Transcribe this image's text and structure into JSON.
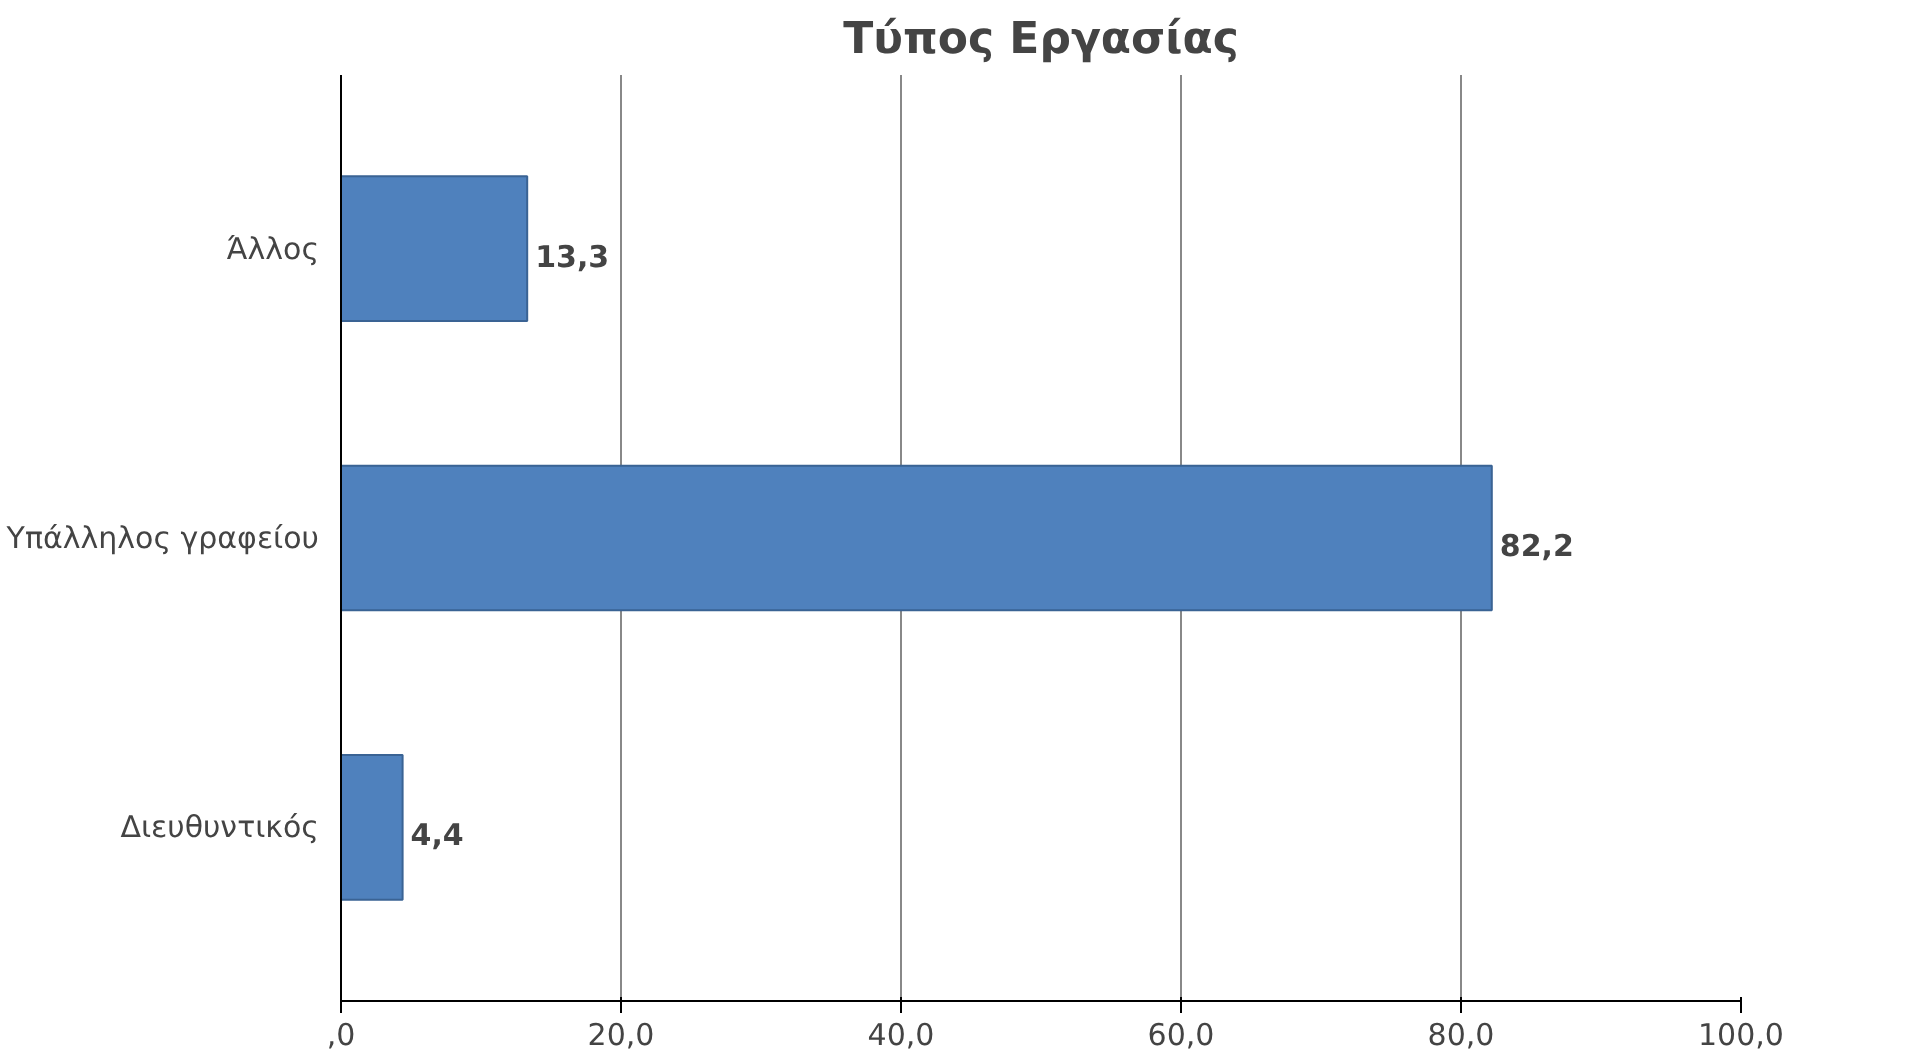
{
  "chart_data": {
    "type": "bar",
    "orientation": "horizontal",
    "title": "Τύπος Εργασίας",
    "categories": [
      "Άλλος",
      "Υπάλληλος γραφείου",
      "Διευθυντικός"
    ],
    "values": [
      13.3,
      82.2,
      4.4
    ],
    "color": "#4f81bd",
    "value_labels": [
      "13,3",
      "82,2",
      "4,4"
    ],
    "xlim": [
      0,
      100
    ],
    "xticks": [
      {
        "value": 0,
        "label": ",0"
      },
      {
        "value": 20,
        "label": "20,0"
      },
      {
        "value": 40,
        "label": "40,0"
      },
      {
        "value": 60,
        "label": "60,0"
      },
      {
        "value": 80,
        "label": "80,0"
      },
      {
        "value": 100,
        "label": "100,0"
      }
    ],
    "grid": "x"
  }
}
